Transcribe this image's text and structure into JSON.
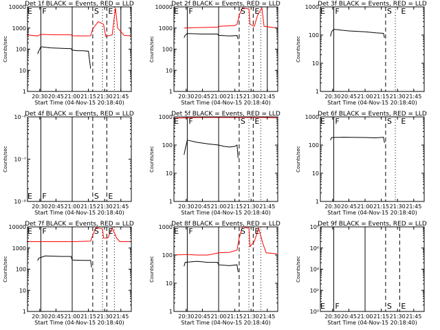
{
  "title_prefix": "Det ",
  "title_suffix": " BLACK = Events, RED = LLD",
  "x_axis_title": "Start Time (04-Nov-15 20:18:40)",
  "y_axis_title": "Counts/sec",
  "x_tick_labels": [
    "20:30",
    "20:45",
    "21:00",
    "21:15",
    "21:30",
    "21:45"
  ],
  "colors": {
    "events": "#000000",
    "lld": "#ff0000",
    "axes": "#000000"
  },
  "chart_data": [
    {
      "type": "line",
      "detector": "1",
      "title": "Det 1f BLACK = Events, RED = LLD",
      "xlabel": "Start Time (04-Nov-15 20:18:40)",
      "ylabel": "Counts/sec",
      "y_scale": "log",
      "ylim": [
        1,
        10000
      ],
      "y_tick_labels": [
        "1",
        "10",
        "100",
        "1000",
        "10000"
      ],
      "x_tick_labels": [
        "20:30",
        "20:45",
        "21:00",
        "21:15",
        "21:30",
        "21:45"
      ],
      "markers": [
        {
          "label": "E",
          "time": "20:18"
        },
        {
          "label": "F",
          "time": "20:31"
        },
        {
          "label": "S",
          "time": "21:19"
        },
        {
          "label": "E",
          "time": "21:32"
        }
      ],
      "solid_lines": [
        "20:31",
        "21:00",
        "21:45"
      ],
      "dashed_lines": [
        "21:19",
        "21:32"
      ],
      "dotted_lines": [
        "21:28",
        "21:39"
      ],
      "series": [
        {
          "name": "Events",
          "color": "black",
          "points": [
            [
              "20:28",
              60
            ],
            [
              "20:29",
              80
            ],
            [
              "20:31",
              130
            ],
            [
              "20:40",
              115
            ],
            [
              "20:50",
              110
            ],
            [
              "20:59",
              105
            ],
            [
              "21:00",
              90
            ],
            [
              "21:05",
              85
            ],
            [
              "21:10",
              85
            ],
            [
              "21:15",
              80
            ],
            [
              "21:17",
              12
            ]
          ]
        },
        {
          "name": "LLD",
          "color": "red",
          "points": [
            [
              "20:18",
              480
            ],
            [
              "20:28",
              420
            ],
            [
              "20:31",
              500
            ],
            [
              "20:45",
              480
            ],
            [
              "20:59",
              480
            ],
            [
              "21:00",
              430
            ],
            [
              "21:10",
              420
            ],
            [
              "21:17",
              430
            ],
            [
              "21:19",
              900
            ],
            [
              "21:24",
              2000
            ],
            [
              "21:29",
              1500
            ],
            [
              "21:31",
              400
            ],
            [
              "21:37",
              480
            ],
            [
              "21:40",
              9000
            ],
            [
              "21:42",
              1000
            ],
            [
              "21:48",
              450
            ],
            [
              "21:54",
              430
            ]
          ]
        }
      ]
    },
    {
      "type": "line",
      "detector": "2",
      "title": "Det 2f BLACK = Events, RED = LLD",
      "xlabel": "Start Time (04-Nov-15 20:18:40)",
      "ylabel": "Counts/sec",
      "y_scale": "log",
      "ylim": [
        1,
        10000
      ],
      "y_tick_labels": [
        "1",
        "10",
        "100",
        "1000",
        "10000"
      ],
      "x_tick_labels": [
        "20:30",
        "20:45",
        "21:00",
        "21:15",
        "21:30",
        "21:45"
      ],
      "markers": [
        {
          "label": "E",
          "time": "20:18"
        },
        {
          "label": "F",
          "time": "20:31"
        },
        {
          "label": "S",
          "time": "21:19"
        },
        {
          "label": "E",
          "time": "21:32"
        }
      ],
      "solid_lines": [
        "20:31",
        "21:00",
        "21:45"
      ],
      "dashed_lines": [
        "21:19",
        "21:32"
      ],
      "dotted_lines": [
        "21:28",
        "21:39"
      ],
      "series": [
        {
          "name": "Events",
          "color": "black",
          "points": [
            [
              "20:28",
              350
            ],
            [
              "20:29",
              450
            ],
            [
              "20:31",
              550
            ],
            [
              "20:45",
              520
            ],
            [
              "20:59",
              520
            ],
            [
              "21:00",
              450
            ],
            [
              "21:10",
              420
            ],
            [
              "21:17",
              440
            ],
            [
              "21:18",
              300
            ]
          ]
        },
        {
          "name": "LLD",
          "color": "red",
          "points": [
            [
              "20:28",
              1000
            ],
            [
              "20:40",
              1050
            ],
            [
              "20:59",
              1100
            ],
            [
              "21:00",
              1200
            ],
            [
              "21:15",
              1300
            ],
            [
              "21:17",
              1500
            ],
            [
              "21:19",
              4000
            ],
            [
              "21:22",
              9000
            ],
            [
              "21:28",
              8000
            ],
            [
              "21:29",
              1500
            ],
            [
              "21:33",
              1200
            ],
            [
              "21:36",
              4000
            ],
            [
              "21:40",
              9000
            ],
            [
              "21:42",
              1200
            ],
            [
              "21:54",
              1000
            ]
          ]
        }
      ]
    },
    {
      "type": "line",
      "detector": "3",
      "title": "Det 3f BLACK = Events, RED = LLD",
      "xlabel": "Start Time (04-Nov-15 20:18:40)",
      "ylabel": "Counts/sec",
      "y_scale": "log",
      "ylim": [
        1,
        1000
      ],
      "y_tick_labels": [
        "1",
        "10",
        "100",
        "1000"
      ],
      "x_tick_labels": [
        "20:30",
        "20:45",
        "21:00",
        "21:15",
        "21:30",
        "21:45"
      ],
      "markers": [
        {
          "label": "E",
          "time": "20:18"
        },
        {
          "label": "F",
          "time": "20:31"
        },
        {
          "label": "S",
          "time": "21:19"
        },
        {
          "label": "E",
          "time": "21:32"
        }
      ],
      "solid_lines": [
        "20:31"
      ],
      "dashed_lines": [
        "21:19"
      ],
      "dotted_lines": [
        "21:28"
      ],
      "series": [
        {
          "name": "Events",
          "color": "black",
          "points": [
            [
              "20:28",
              90
            ],
            [
              "20:29",
              130
            ],
            [
              "20:31",
              160
            ],
            [
              "20:45",
              140
            ],
            [
              "21:00",
              130
            ],
            [
              "21:10",
              120
            ],
            [
              "21:17",
              115
            ],
            [
              "21:18",
              80
            ]
          ]
        }
      ]
    },
    {
      "type": "line",
      "detector": "4",
      "title": "Det 4f BLACK = Events, RED = LLD",
      "xlabel": "Start Time (04-Nov-15 20:18:40)",
      "ylabel": "Counts/sec",
      "y_scale": "log",
      "ylim": [
        1e-08,
        1e-06
      ],
      "y_tick_labels": [
        "10⁻⁸",
        "10⁻⁷",
        "10⁻⁶"
      ],
      "x_tick_labels": [
        "20:30",
        "20:45",
        "21:00",
        "21:15",
        "21:30",
        "21:45"
      ],
      "markers": [
        {
          "label": "E",
          "time": "20:18"
        },
        {
          "label": "F",
          "time": "20:31"
        },
        {
          "label": "S",
          "time": "21:19"
        },
        {
          "label": "E",
          "time": "21:32"
        }
      ],
      "solid_lines": [
        "20:31",
        "21:00"
      ],
      "dashed_lines": [
        "21:19",
        "21:32"
      ],
      "dotted_lines": [],
      "series": []
    },
    {
      "type": "line",
      "detector": "5",
      "title": "Det 5f BLACK = Events, RED = LLD",
      "xlabel": "Start Time (04-Nov-15 20:18:40)",
      "ylabel": "Counts/sec",
      "y_scale": "log",
      "ylim": [
        1,
        1000
      ],
      "y_tick_labels": [
        "1",
        "10",
        "100",
        "1000"
      ],
      "x_tick_labels": [
        "20:30",
        "20:45",
        "21:00",
        "21:15",
        "21:30",
        "21:45"
      ],
      "markers": [
        {
          "label": "E",
          "time": "20:18"
        },
        {
          "label": "F",
          "time": "20:31"
        },
        {
          "label": "S",
          "time": "21:19"
        },
        {
          "label": "E",
          "time": "21:32"
        }
      ],
      "solid_lines": [
        "20:31",
        "21:00"
      ],
      "dashed_lines": [
        "21:19",
        "21:32"
      ],
      "dotted_lines": [
        "21:28",
        "21:39"
      ],
      "series": [
        {
          "name": "Events",
          "color": "black",
          "points": [
            [
              "20:28",
              45
            ],
            [
              "20:29",
              70
            ],
            [
              "20:31",
              150
            ],
            [
              "20:40",
              125
            ],
            [
              "20:50",
              110
            ],
            [
              "21:00",
              100
            ],
            [
              "21:05",
              90
            ],
            [
              "21:10",
              85
            ],
            [
              "21:15",
              90
            ],
            [
              "21:17",
              100
            ],
            [
              "21:18",
              35
            ]
          ]
        },
        {
          "name": "LLD",
          "color": "red",
          "points": [
            [
              "20:18",
              900
            ],
            [
              "20:40",
              950
            ],
            [
              "21:00",
              950
            ],
            [
              "21:20",
              950
            ],
            [
              "21:40",
              950
            ],
            [
              "21:54",
              930
            ]
          ]
        }
      ]
    },
    {
      "type": "line",
      "detector": "6",
      "title": "Det 6f BLACK = Events, RED = LLD",
      "xlabel": "Start Time (04-Nov-15 20:18:40)",
      "ylabel": "Counts/sec",
      "y_scale": "log",
      "ylim": [
        1,
        1000
      ],
      "y_tick_labels": [
        "1",
        "10",
        "100",
        "1000"
      ],
      "x_tick_labels": [
        "20:30",
        "20:45",
        "21:00",
        "21:15",
        "21:30",
        "21:45"
      ],
      "markers": [
        {
          "label": "E",
          "time": "20:18"
        },
        {
          "label": "F",
          "time": "20:31"
        },
        {
          "label": "S",
          "time": "21:19"
        },
        {
          "label": "E",
          "time": "21:32"
        }
      ],
      "solid_lines": [
        "20:31"
      ],
      "dashed_lines": [
        "21:19"
      ],
      "dotted_lines": [
        "21:28"
      ],
      "series": [
        {
          "name": "Events",
          "color": "black",
          "points": [
            [
              "20:28",
              150
            ],
            [
              "20:29",
              185
            ],
            [
              "20:40",
              190
            ],
            [
              "21:00",
              185
            ],
            [
              "21:10",
              180
            ],
            [
              "21:17",
              190
            ],
            [
              "21:18",
              120
            ]
          ]
        }
      ]
    },
    {
      "type": "line",
      "detector": "7",
      "title": "Det 7f BLACK = Events, RED = LLD",
      "xlabel": "Start Time (04-Nov-15 20:18:40)",
      "ylabel": "Counts/sec",
      "y_scale": "log",
      "ylim": [
        1,
        10000
      ],
      "y_tick_labels": [
        "1",
        "10",
        "100",
        "1000",
        "10000"
      ],
      "x_tick_labels": [
        "20:30",
        "20:45",
        "21:00",
        "21:15",
        "21:30",
        "21:45"
      ],
      "markers": [
        {
          "label": "E",
          "time": "20:18"
        },
        {
          "label": "F",
          "time": "20:31"
        },
        {
          "label": "S",
          "time": "21:19"
        },
        {
          "label": "E",
          "time": "21:32"
        }
      ],
      "solid_lines": [
        "20:31",
        "21:00"
      ],
      "dashed_lines": [
        "21:19",
        "21:32"
      ],
      "dotted_lines": [
        "21:28",
        "21:39"
      ],
      "series": [
        {
          "name": "Events",
          "color": "black",
          "points": [
            [
              "20:28",
              250
            ],
            [
              "20:29",
              330
            ],
            [
              "20:35",
              420
            ],
            [
              "20:50",
              400
            ],
            [
              "20:59",
              400
            ],
            [
              "21:00",
              270
            ],
            [
              "21:10",
              260
            ],
            [
              "21:17",
              260
            ],
            [
              "21:18",
              120
            ]
          ]
        },
        {
          "name": "LLD",
          "color": "red",
          "points": [
            [
              "20:18",
              2000
            ],
            [
              "20:40",
              2000
            ],
            [
              "21:00",
              2000
            ],
            [
              "21:17",
              2100
            ],
            [
              "21:19",
              4000
            ],
            [
              "21:22",
              9500
            ],
            [
              "21:28",
              8000
            ],
            [
              "21:29",
              3000
            ],
            [
              "21:33",
              3000
            ],
            [
              "21:37",
              9000
            ],
            [
              "21:41",
              3000
            ],
            [
              "21:44",
              2000
            ],
            [
              "21:54",
              2000
            ]
          ]
        }
      ]
    },
    {
      "type": "line",
      "detector": "8",
      "title": "Det 8f BLACK = Events, RED = LLD",
      "xlabel": "Start Time (04-Nov-15 20:18:40)",
      "ylabel": "Counts/sec",
      "y_scale": "log",
      "ylim": [
        1,
        1000
      ],
      "y_tick_labels": [
        "1",
        "10",
        "100",
        "1000"
      ],
      "x_tick_labels": [
        "20:30",
        "20:45",
        "21:00",
        "21:15",
        "21:30",
        "21:45"
      ],
      "markers": [
        {
          "label": "E",
          "time": "20:18"
        },
        {
          "label": "F",
          "time": "20:31"
        },
        {
          "label": "S",
          "time": "21:19"
        },
        {
          "label": "E",
          "time": "21:32"
        }
      ],
      "solid_lines": [
        "20:31",
        "21:00"
      ],
      "dashed_lines": [
        "21:19",
        "21:32"
      ],
      "dotted_lines": [
        "21:28",
        "21:39"
      ],
      "series": [
        {
          "name": "Events",
          "color": "black",
          "points": [
            [
              "20:28",
              40
            ],
            [
              "20:29",
              55
            ],
            [
              "20:40",
              60
            ],
            [
              "20:50",
              55
            ],
            [
              "20:59",
              55
            ],
            [
              "21:00",
              45
            ],
            [
              "21:10",
              42
            ],
            [
              "21:17",
              45
            ],
            [
              "21:18",
              25
            ]
          ]
        },
        {
          "name": "LLD",
          "color": "red",
          "points": [
            [
              "20:18",
              100
            ],
            [
              "20:31",
              105
            ],
            [
              "20:40",
              100
            ],
            [
              "20:50",
              100
            ],
            [
              "21:00",
              120
            ],
            [
              "21:10",
              125
            ],
            [
              "21:17",
              150
            ],
            [
              "21:19",
              400
            ],
            [
              "21:22",
              1000
            ],
            [
              "21:28",
              900
            ],
            [
              "21:29",
              200
            ],
            [
              "21:33",
              300
            ],
            [
              "21:37",
              900
            ],
            [
              "21:41",
              250
            ],
            [
              "21:44",
              120
            ],
            [
              "21:54",
              110
            ]
          ]
        }
      ]
    },
    {
      "type": "line",
      "detector": "9",
      "title": "Det 9f BLACK = Events, RED = LLD",
      "xlabel": "Start Time (04-Nov-15 20:18:40)",
      "ylabel": "Counts/sec",
      "y_scale": "log",
      "ylim": [
        1,
        100000000.0
      ],
      "y_tick_labels": [
        "10⁰",
        "10²",
        "10⁴",
        "10⁶",
        "10⁸"
      ],
      "x_tick_labels": [
        "20:30",
        "20:45",
        "21:00",
        "21:15",
        "21:30",
        "21:45"
      ],
      "markers": [
        {
          "label": "E",
          "time": "20:18"
        },
        {
          "label": "F",
          "time": "20:31"
        },
        {
          "label": "S",
          "time": "21:19"
        },
        {
          "label": "E",
          "time": "21:32"
        }
      ],
      "solid_lines": [
        "20:31",
        "21:00"
      ],
      "dashed_lines": [
        "21:19",
        "21:32"
      ],
      "dotted_lines": [],
      "series": []
    }
  ]
}
